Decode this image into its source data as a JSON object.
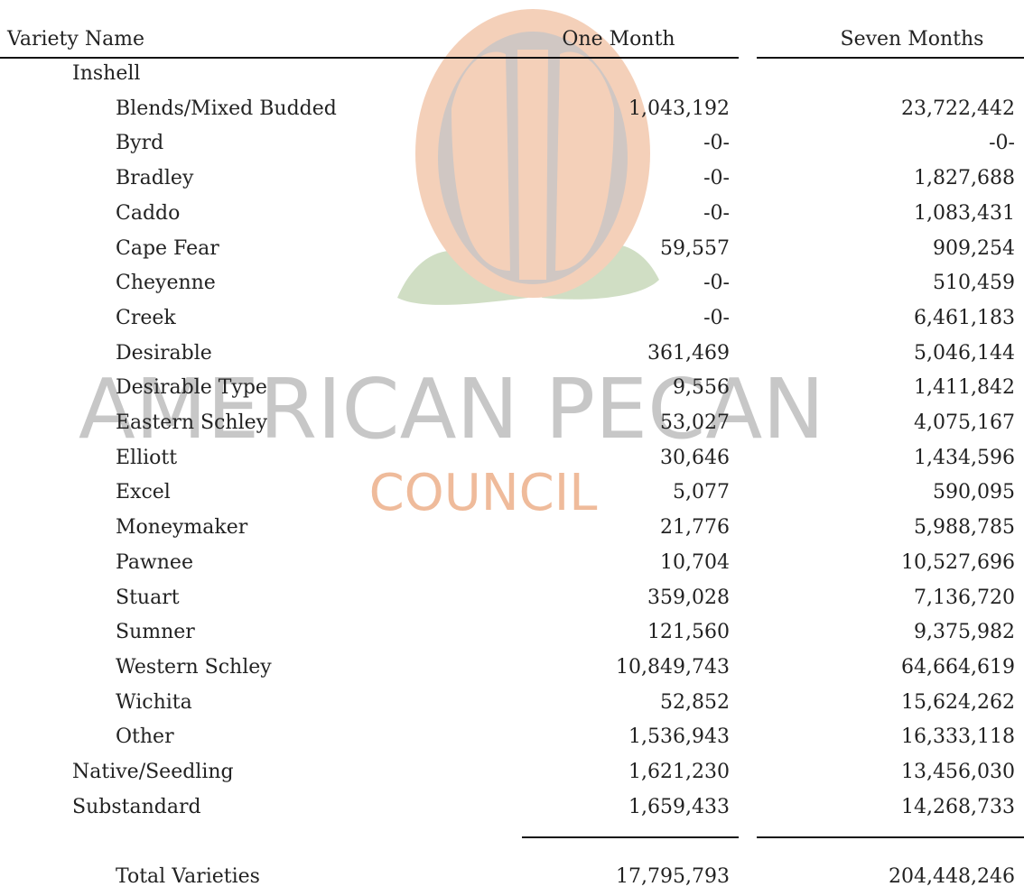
{
  "watermark": {
    "line1": "AMERICAN PECAN",
    "line2": "COUNCIL"
  },
  "table": {
    "columns": [
      "Variety Name",
      "One Month",
      "Seven Months"
    ],
    "rows": [
      {
        "label": "Inshell",
        "level": 1,
        "one_month": null,
        "seven_months": null
      },
      {
        "label": "Blends/Mixed Budded",
        "level": 2,
        "one_month": "1,043,192",
        "seven_months": "23,722,442"
      },
      {
        "label": "Byrd",
        "level": 2,
        "one_month": "-0-",
        "seven_months": "-0-"
      },
      {
        "label": "Bradley",
        "level": 2,
        "one_month": "-0-",
        "seven_months": "1,827,688"
      },
      {
        "label": "Caddo",
        "level": 2,
        "one_month": "-0-",
        "seven_months": "1,083,431"
      },
      {
        "label": "Cape Fear",
        "level": 2,
        "one_month": "59,557",
        "seven_months": "909,254"
      },
      {
        "label": "Cheyenne",
        "level": 2,
        "one_month": "-0-",
        "seven_months": "510,459"
      },
      {
        "label": "Creek",
        "level": 2,
        "one_month": "-0-",
        "seven_months": "6,461,183"
      },
      {
        "label": "Desirable",
        "level": 2,
        "one_month": "361,469",
        "seven_months": "5,046,144"
      },
      {
        "label": "Desirable Type",
        "level": 2,
        "one_month": "9,556",
        "seven_months": "1,411,842"
      },
      {
        "label": "Eastern Schley",
        "level": 2,
        "one_month": "53,027",
        "seven_months": "4,075,167"
      },
      {
        "label": "Elliott",
        "level": 2,
        "one_month": "30,646",
        "seven_months": "1,434,596"
      },
      {
        "label": "Excel",
        "level": 2,
        "one_month": "5,077",
        "seven_months": "590,095"
      },
      {
        "label": "Moneymaker",
        "level": 2,
        "one_month": "21,776",
        "seven_months": "5,988,785"
      },
      {
        "label": "Pawnee",
        "level": 2,
        "one_month": "10,704",
        "seven_months": "10,527,696"
      },
      {
        "label": "Stuart",
        "level": 2,
        "one_month": "359,028",
        "seven_months": "7,136,720"
      },
      {
        "label": "Sumner",
        "level": 2,
        "one_month": "121,560",
        "seven_months": "9,375,982"
      },
      {
        "label": "Western Schley",
        "level": 2,
        "one_month": "10,849,743",
        "seven_months": "64,664,619"
      },
      {
        "label": "Wichita",
        "level": 2,
        "one_month": "52,852",
        "seven_months": "15,624,262"
      },
      {
        "label": "Other",
        "level": 2,
        "one_month": "1,536,943",
        "seven_months": "16,333,118"
      },
      {
        "label": "Native/Seedling",
        "level": 1,
        "one_month": "1,621,230",
        "seven_months": "13,456,030"
      },
      {
        "label": "Substandard",
        "level": 1,
        "one_month": "1,659,433",
        "seven_months": "14,268,733"
      }
    ],
    "total": {
      "label": "Total Varieties",
      "one_month": "17,795,793",
      "seven_months": "204,448,246"
    }
  }
}
